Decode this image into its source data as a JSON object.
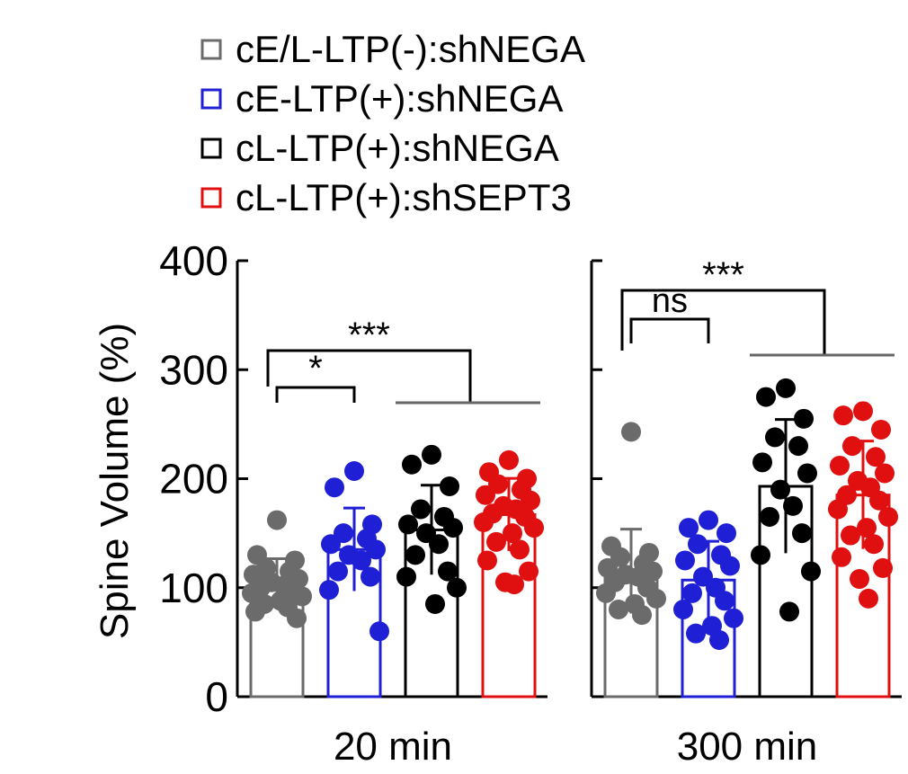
{
  "chart_data": {
    "type": "bar",
    "ylabel": "Spine Volume (%)",
    "ylim": [
      0,
      400
    ],
    "yticks": [
      "0",
      "100",
      "200",
      "300",
      "400"
    ],
    "legend": {
      "placement": "top",
      "entries": [
        {
          "label": "cE/L-LTP(-):shNEGA",
          "color": "#6b6b6b"
        },
        {
          "label": "cE-LTP(+):shNEGA",
          "color": "#1f1fd6"
        },
        {
          "label": "cL-LTP(+):shNEGA",
          "color": "#000000"
        },
        {
          "label": "cL-LTP(+):shSEPT3",
          "color": "#e01010"
        }
      ]
    },
    "panels": [
      {
        "xlabel": "20 min",
        "bars": [
          {
            "group": 0,
            "mean": 105,
            "points": [
              162,
              130,
              125,
              118,
              115,
              112,
              108,
              105,
              102,
              100,
              98,
              95,
              92,
              88,
              85,
              82,
              78,
              72
            ]
          },
          {
            "group": 1,
            "mean": 135,
            "points": [
              207,
              192,
              158,
              150,
              145,
              140,
              135,
              130,
              125,
              115,
              110,
              98,
              60
            ]
          },
          {
            "group": 2,
            "mean": 153,
            "points": [
              222,
              213,
              193,
              172,
              165,
              158,
              155,
              150,
              140,
              130,
              115,
              110,
              100,
              85
            ]
          },
          {
            "group": 3,
            "mean": 167,
            "points": [
              217,
              206,
              200,
              195,
              190,
              185,
              180,
              175,
              172,
              168,
              165,
              160,
              155,
              150,
              142,
              135,
              125,
              115,
              105,
              103
            ]
          }
        ],
        "brackets": [
          {
            "label": "*",
            "from": 0,
            "to": [
              1
            ]
          },
          {
            "label": "***",
            "from": 0,
            "to": [
              2,
              3
            ]
          }
        ]
      },
      {
        "xlabel": "300 min",
        "bars": [
          {
            "group": 0,
            "mean": 115,
            "points": [
              243,
              138,
              132,
              128,
              122,
              118,
              115,
              112,
              110,
              105,
              100,
              95,
              90,
              85,
              80,
              75
            ]
          },
          {
            "group": 1,
            "mean": 107,
            "points": [
              162,
              155,
              150,
              140,
              130,
              125,
              120,
              110,
              100,
              95,
              88,
              80,
              72,
              65,
              58,
              52
            ]
          },
          {
            "group": 2,
            "mean": 193,
            "points": [
              283,
              275,
              255,
              238,
              230,
              215,
              205,
              190,
              175,
              165,
              150,
              130,
              115,
              78
            ]
          },
          {
            "group": 3,
            "mean": 185,
            "points": [
              262,
              258,
              245,
              230,
              220,
              212,
              205,
              198,
              192,
              185,
              180,
              172,
              165,
              155,
              148,
              140,
              128,
              118,
              108,
              90
            ]
          }
        ],
        "brackets": [
          {
            "label": "ns",
            "from": 0,
            "to": [
              1
            ]
          },
          {
            "label": "***",
            "from": 0,
            "to": [
              2,
              3
            ]
          }
        ]
      }
    ]
  }
}
